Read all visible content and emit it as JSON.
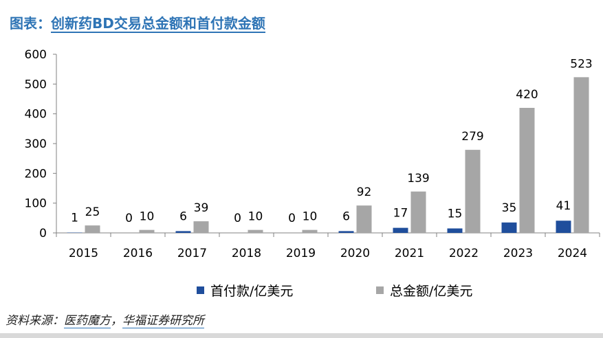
{
  "header": {
    "title_prefix": "图表：",
    "title_main": "创新药BD交易总金额和首付款金额"
  },
  "chart_data": {
    "type": "bar",
    "title": "创新药BD交易总金额和首付款金额",
    "categories": [
      "2015",
      "2016",
      "2017",
      "2018",
      "2019",
      "2020",
      "2021",
      "2022",
      "2023",
      "2024"
    ],
    "series": [
      {
        "name": "首付款/亿美元",
        "color": "#1f4e9c",
        "values": [
          1,
          0,
          6,
          0,
          0,
          6,
          17,
          15,
          35,
          41
        ]
      },
      {
        "name": "总金额/亿美元",
        "color": "#a6a6a6",
        "values": [
          25,
          10,
          39,
          10,
          10,
          92,
          139,
          279,
          420,
          523
        ]
      }
    ],
    "ylim": [
      0,
      600
    ],
    "yticks": [
      0,
      100,
      200,
      300,
      400,
      500,
      600
    ],
    "xlabel": "",
    "ylabel": "",
    "legend_position": "bottom",
    "grid": false
  },
  "footer": {
    "source_prefix": "资料来源：",
    "source_a": "医药魔方",
    "source_sep": "，",
    "source_b": "华福证券研究所"
  }
}
